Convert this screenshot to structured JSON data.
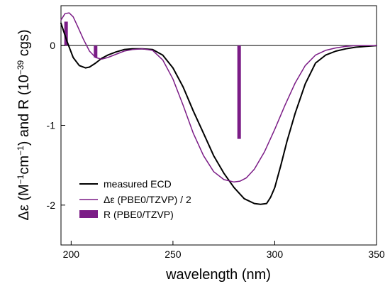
{
  "chart_data": {
    "type": "line",
    "xlabel": "wavelength (nm)",
    "ylabel_parts": [
      "Δε (M",
      "−1",
      "cm",
      "−1",
      ") and R (10",
      "−39",
      " cgs)"
    ],
    "xlim": [
      195,
      350
    ],
    "ylim": [
      -2.5,
      0.5
    ],
    "x_ticks": [
      200,
      250,
      300,
      350
    ],
    "x_tick_labels": [
      "200",
      "250",
      "300",
      "350"
    ],
    "y_ticks": [
      -2,
      -1,
      0
    ],
    "y_tick_labels": [
      "-2",
      "-1",
      "0"
    ],
    "zero_line": true,
    "legend_position": "lower-left",
    "series": [
      {
        "name": "measured ECD",
        "kind": "line",
        "color": "#000000",
        "x": [
          195,
          198,
          201,
          204,
          207,
          209,
          212,
          215,
          218,
          222,
          226,
          230,
          235,
          240,
          245,
          250,
          255,
          260,
          265,
          270,
          275,
          280,
          285,
          290,
          293,
          296,
          298,
          300,
          303,
          306,
          310,
          315,
          320,
          325,
          330,
          335,
          340,
          345,
          350
        ],
        "y": [
          0.28,
          0.05,
          -0.15,
          -0.25,
          -0.28,
          -0.27,
          -0.22,
          -0.16,
          -0.12,
          -0.08,
          -0.05,
          -0.04,
          -0.04,
          -0.05,
          -0.12,
          -0.28,
          -0.52,
          -0.82,
          -1.1,
          -1.38,
          -1.6,
          -1.78,
          -1.92,
          -1.98,
          -1.99,
          -1.98,
          -1.9,
          -1.78,
          -1.5,
          -1.2,
          -0.85,
          -0.48,
          -0.22,
          -0.12,
          -0.07,
          -0.04,
          -0.02,
          -0.01,
          0.0
        ]
      },
      {
        "name": "Δε (PBE0/TZVP) / 2",
        "kind": "line",
        "color": "#7b1c86",
        "x": [
          195,
          197,
          199,
          201,
          203,
          206,
          209,
          212,
          215,
          218,
          222,
          226,
          230,
          235,
          240,
          245,
          250,
          255,
          260,
          265,
          270,
          275,
          280,
          283,
          286,
          290,
          295,
          300,
          305,
          310,
          315,
          320,
          325,
          330,
          335,
          340,
          345,
          350
        ],
        "y": [
          0.32,
          0.4,
          0.41,
          0.36,
          0.25,
          0.08,
          -0.07,
          -0.15,
          -0.17,
          -0.15,
          -0.11,
          -0.07,
          -0.05,
          -0.04,
          -0.06,
          -0.18,
          -0.42,
          -0.75,
          -1.1,
          -1.38,
          -1.58,
          -1.68,
          -1.71,
          -1.7,
          -1.66,
          -1.55,
          -1.33,
          -1.05,
          -0.75,
          -0.47,
          -0.25,
          -0.12,
          -0.06,
          -0.03,
          -0.01,
          0.0,
          0.0,
          0.0
        ]
      },
      {
        "name": "R (PBE0/TZVP)",
        "kind": "bar",
        "color": "#7b1c86",
        "x": [
          197.5,
          212,
          282.5
        ],
        "y": [
          0.3,
          -0.15,
          -1.17
        ]
      }
    ]
  }
}
